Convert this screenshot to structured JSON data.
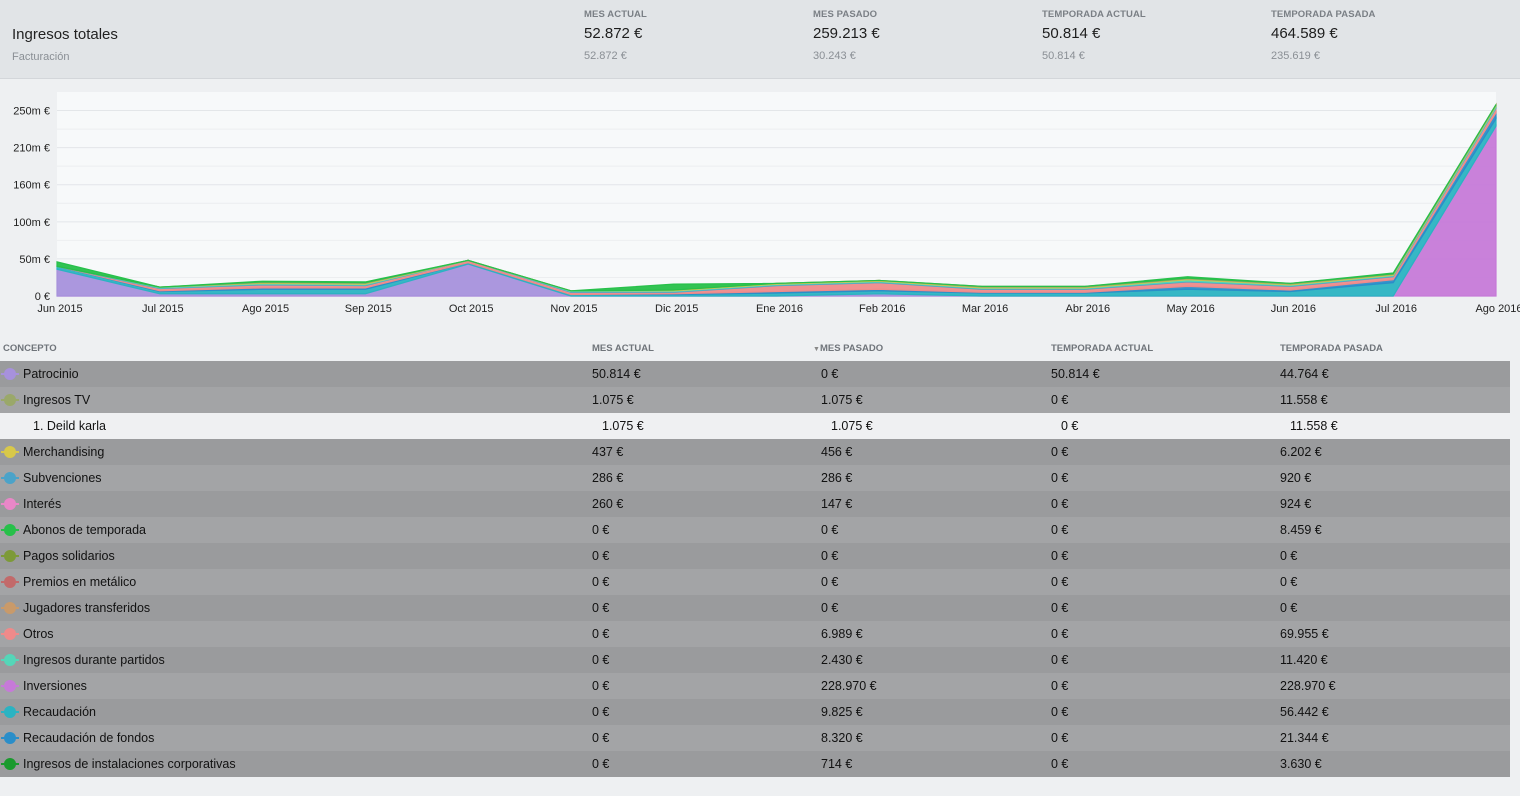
{
  "header": {
    "title": "Ingresos totales",
    "subtitle": "Facturación",
    "stats": [
      {
        "label": "MES ACTUAL",
        "value": "52.872 €",
        "sub": "52.872 €"
      },
      {
        "label": "MES PASADO",
        "value": "259.213 €",
        "sub": "30.243 €"
      },
      {
        "label": "TEMPORADA ACTUAL",
        "value": "50.814 €",
        "sub": "50.814 €"
      },
      {
        "label": "TEMPORADA PASADA",
        "value": "464.589 €",
        "sub": "235.619 €"
      }
    ]
  },
  "chart_data": {
    "type": "area",
    "stacked": true,
    "categories": [
      "Jun 2015",
      "Jul 2015",
      "Ago 2015",
      "Sep 2015",
      "Oct 2015",
      "Nov 2015",
      "Dic 2015",
      "Ene 2016",
      "Feb 2016",
      "Mar 2016",
      "Abr 2016",
      "May 2016",
      "Jun 2016",
      "Jul 2016",
      "Ago 2016"
    ],
    "y_ticks": [
      "0 €",
      "50m €",
      "100m €",
      "160m €",
      "210m €",
      "250m €"
    ],
    "ylim": [
      0,
      275
    ],
    "grid": true,
    "series": [
      {
        "name": "Inversiones",
        "color": "#c67ad8",
        "values": [
          0,
          0,
          0,
          0,
          0,
          0,
          0,
          0,
          0,
          0,
          0,
          0,
          0,
          0,
          229
        ]
      },
      {
        "name": "Patrocinio",
        "color": "#a791dc",
        "values": [
          36,
          3,
          3,
          3,
          43,
          0,
          0,
          0,
          3,
          0,
          0,
          0,
          0,
          0,
          0
        ]
      },
      {
        "name": "Recaudación",
        "color": "#2bb3c2",
        "values": [
          4,
          3,
          6,
          6,
          2,
          2,
          2,
          4,
          4,
          4,
          4,
          9,
          6,
          18,
          10
        ]
      },
      {
        "name": "Recaudación de fondos",
        "color": "#2a8ec9",
        "values": [
          0,
          1,
          2,
          2,
          0,
          0,
          1,
          2,
          2,
          1,
          1,
          4,
          2,
          4,
          8
        ]
      },
      {
        "name": "Otros",
        "color": "#ef8a8a",
        "values": [
          0,
          3,
          4,
          3,
          3,
          3,
          2,
          8,
          9,
          4,
          4,
          6,
          5,
          4,
          6
        ]
      },
      {
        "name": "Subvenciones",
        "color": "#4ba3c9",
        "values": [
          0,
          1,
          1,
          1,
          0,
          1,
          1,
          1,
          1,
          1,
          1,
          1,
          1,
          1,
          1
        ]
      },
      {
        "name": "Ingresos durante partidos",
        "color": "#55d6b8",
        "values": [
          0,
          1,
          1,
          1,
          0,
          1,
          1,
          1,
          1,
          1,
          1,
          2,
          1,
          1,
          2
        ]
      },
      {
        "name": "Merchandising",
        "color": "#d8c84a",
        "values": [
          0,
          0,
          1,
          1,
          0,
          0,
          1,
          1,
          1,
          1,
          1,
          1,
          1,
          1,
          1
        ]
      },
      {
        "name": "Ingresos TV",
        "color": "#9aa86a",
        "values": [
          0,
          0,
          1,
          1,
          0,
          0,
          0,
          0,
          0,
          1,
          1,
          1,
          1,
          1,
          1
        ]
      },
      {
        "name": "Abonos de temporada",
        "color": "#27c04a",
        "values": [
          6,
          0,
          1,
          1,
          0,
          0,
          8,
          0,
          0,
          0,
          0,
          2,
          0,
          1,
          0
        ]
      }
    ]
  },
  "table": {
    "headers": [
      "CONCEPTO",
      "MES ACTUAL",
      "MES PASADO",
      "TEMPORADA ACTUAL",
      "TEMPORADA PASADA"
    ],
    "sort_indicator": "▼",
    "rows": [
      {
        "concept": "Patrocinio",
        "color": "#a791dc",
        "c1": "50.814 €",
        "c2": "0 €",
        "c3": "50.814 €",
        "c4": "44.764 €",
        "style": "dark"
      },
      {
        "concept": "Ingresos TV",
        "color": "#9aa86a",
        "c1": "1.075 €",
        "c2": "1.075 €",
        "c3": "0 €",
        "c4": "11.558 €",
        "style": "alt"
      },
      {
        "concept": "1. Deild karla",
        "color": "",
        "c1": "1.075 €",
        "c2": "1.075 €",
        "c3": "0 €",
        "c4": "11.558 €",
        "style": "sub"
      },
      {
        "concept": "Merchandising",
        "color": "#d8c84a",
        "c1": "437 €",
        "c2": "456 €",
        "c3": "0 €",
        "c4": "6.202 €",
        "style": "dark"
      },
      {
        "concept": "Subvenciones",
        "color": "#4ba3c9",
        "c1": "286 €",
        "c2": "286 €",
        "c3": "0 €",
        "c4": "920 €",
        "style": "alt"
      },
      {
        "concept": "Interés",
        "color": "#e987c8",
        "c1": "260 €",
        "c2": "147 €",
        "c3": "0 €",
        "c4": "924 €",
        "style": "dark"
      },
      {
        "concept": "Abonos de temporada",
        "color": "#27c04a",
        "c1": "0 €",
        "c2": "0 €",
        "c3": "0 €",
        "c4": "8.459 €",
        "style": "alt"
      },
      {
        "concept": "Pagos solidarios",
        "color": "#7d9a38",
        "c1": "0 €",
        "c2": "0 €",
        "c3": "0 €",
        "c4": "0 €",
        "style": "dark"
      },
      {
        "concept": "Premios en metálico",
        "color": "#c26a6a",
        "c1": "0 €",
        "c2": "0 €",
        "c3": "0 €",
        "c4": "0 €",
        "style": "alt"
      },
      {
        "concept": "Jugadores transferidos",
        "color": "#c99a6a",
        "c1": "0 €",
        "c2": "0 €",
        "c3": "0 €",
        "c4": "0 €",
        "style": "dark"
      },
      {
        "concept": "Otros",
        "color": "#ef8a8a",
        "c1": "0 €",
        "c2": "6.989 €",
        "c3": "0 €",
        "c4": "69.955 €",
        "style": "alt"
      },
      {
        "concept": "Ingresos durante partidos",
        "color": "#55d6b8",
        "c1": "0 €",
        "c2": "2.430 €",
        "c3": "0 €",
        "c4": "11.420 €",
        "style": "dark"
      },
      {
        "concept": "Inversiones",
        "color": "#c67ad8",
        "c1": "0 €",
        "c2": "228.970 €",
        "c3": "0 €",
        "c4": "228.970 €",
        "style": "alt"
      },
      {
        "concept": "Recaudación",
        "color": "#2bb3c2",
        "c1": "0 €",
        "c2": "9.825 €",
        "c3": "0 €",
        "c4": "56.442 €",
        "style": "dark"
      },
      {
        "concept": "Recaudación de fondos",
        "color": "#2a8ec9",
        "c1": "0 €",
        "c2": "8.320 €",
        "c3": "0 €",
        "c4": "21.344 €",
        "style": "alt"
      },
      {
        "concept": "Ingresos de instalaciones corporativas",
        "color": "#1a9a2e",
        "c1": "0 €",
        "c2": "714 €",
        "c3": "0 €",
        "c4": "3.630 €",
        "style": "dark"
      }
    ]
  }
}
